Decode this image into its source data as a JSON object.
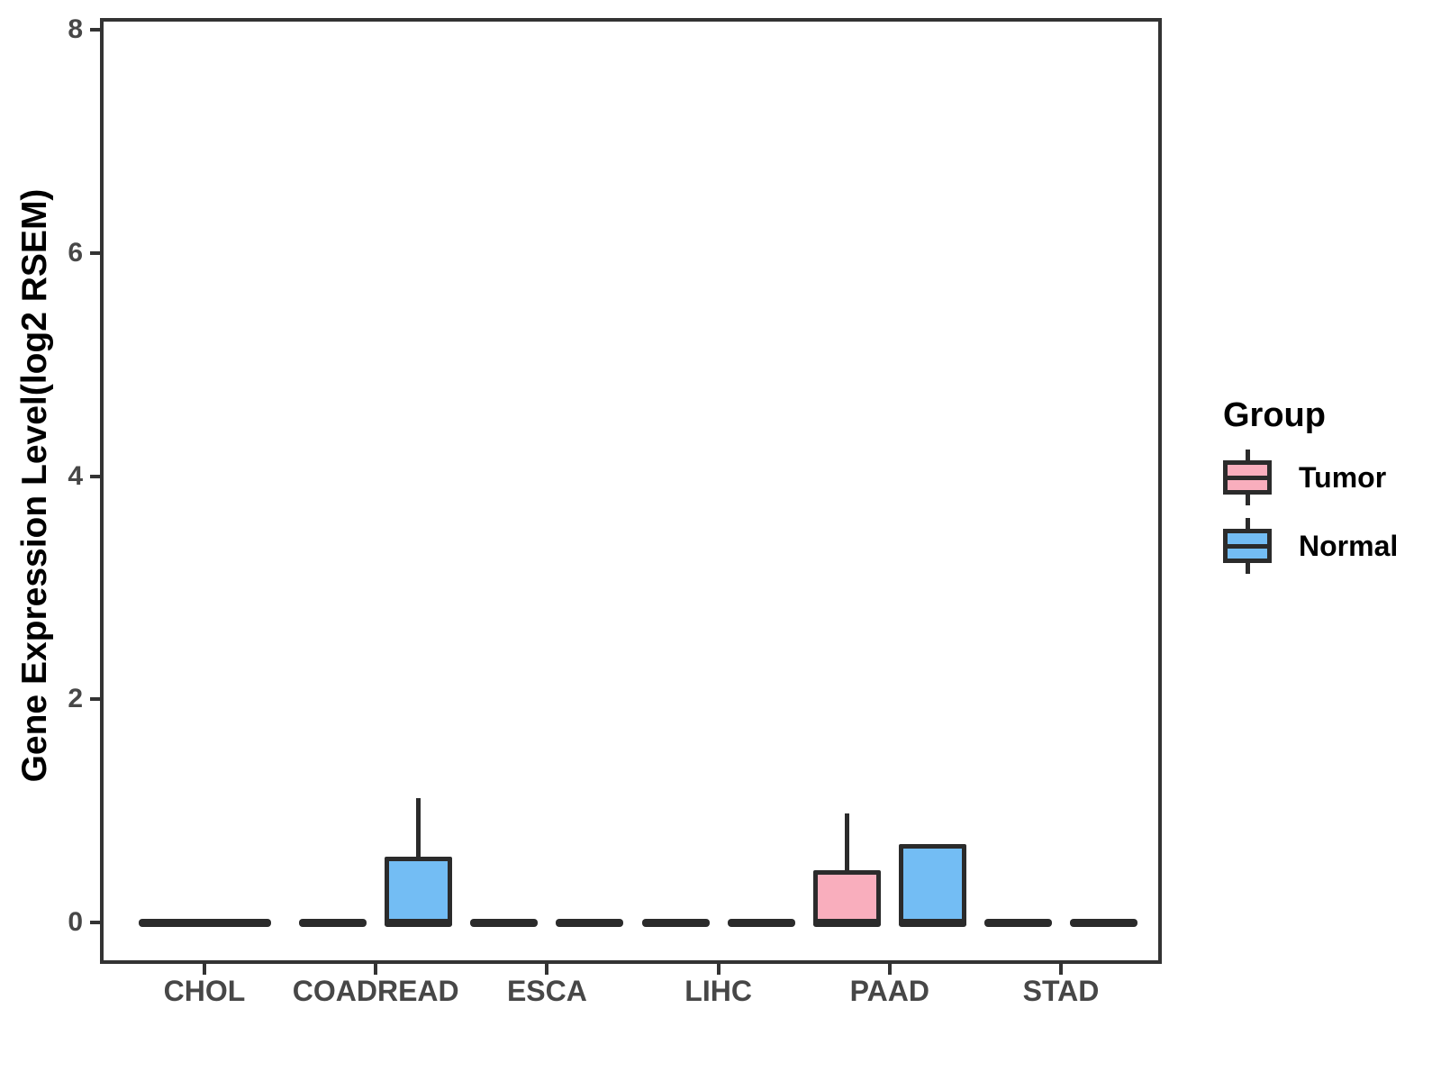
{
  "chart_data": {
    "type": "boxplot",
    "title": "",
    "ylabel": "Gene Expression Level(log2 RSEM)",
    "xlabel": "",
    "ylim": [
      0,
      8
    ],
    "yticks": [
      0,
      2,
      4,
      6,
      8
    ],
    "grid": false,
    "categories": [
      "CHOL",
      "COADREAD",
      "ESCA",
      "LIHC",
      "PAAD",
      "STAD"
    ],
    "groups": [
      "Tumor",
      "Normal"
    ],
    "boxes": [
      {
        "category": "CHOL",
        "group": "Tumor",
        "full_width": true,
        "min": 0,
        "q1": 0,
        "median": 0,
        "q3": 0,
        "max": 0
      },
      {
        "category": "COADREAD",
        "group": "Tumor",
        "full_width": false,
        "min": 0,
        "q1": 0,
        "median": 0,
        "q3": 0,
        "max": 0
      },
      {
        "category": "COADREAD",
        "group": "Normal",
        "full_width": false,
        "min": 0,
        "q1": 0,
        "median": 0,
        "q3": 0.57,
        "max": 1.11
      },
      {
        "category": "ESCA",
        "group": "Tumor",
        "full_width": false,
        "min": 0,
        "q1": 0,
        "median": 0,
        "q3": 0,
        "max": 0
      },
      {
        "category": "ESCA",
        "group": "Normal",
        "full_width": false,
        "min": 0,
        "q1": 0,
        "median": 0,
        "q3": 0,
        "max": 0
      },
      {
        "category": "LIHC",
        "group": "Tumor",
        "full_width": false,
        "min": 0,
        "q1": 0,
        "median": 0,
        "q3": 0,
        "max": 0
      },
      {
        "category": "LIHC",
        "group": "Normal",
        "full_width": false,
        "min": 0,
        "q1": 0,
        "median": 0,
        "q3": 0,
        "max": 0
      },
      {
        "category": "PAAD",
        "group": "Tumor",
        "full_width": false,
        "min": 0,
        "q1": 0,
        "median": 0,
        "q3": 0.45,
        "max": 0.98
      },
      {
        "category": "PAAD",
        "group": "Normal",
        "full_width": false,
        "min": 0,
        "q1": 0,
        "median": 0,
        "q3": 0.69,
        "max": 0.69
      },
      {
        "category": "STAD",
        "group": "Tumor",
        "full_width": false,
        "min": 0,
        "q1": 0,
        "median": 0,
        "q3": 0,
        "max": 0
      },
      {
        "category": "STAD",
        "group": "Normal",
        "full_width": false,
        "min": 0,
        "q1": 0,
        "median": 0,
        "q3": 0,
        "max": 0
      }
    ],
    "legend": {
      "title": "Group",
      "position": "right",
      "entries": [
        {
          "label": "Tumor",
          "color": "#F9AEBD"
        },
        {
          "label": "Normal",
          "color": "#73BDF4"
        }
      ]
    },
    "colors": {
      "tumor_fill": "#F9AEBD",
      "normal_fill": "#73BDF4",
      "box_border": "#2b2b2b",
      "panel_border": "#333333",
      "tick_label": "#474747",
      "axis_title": "#000000",
      "background": "#ffffff"
    }
  }
}
